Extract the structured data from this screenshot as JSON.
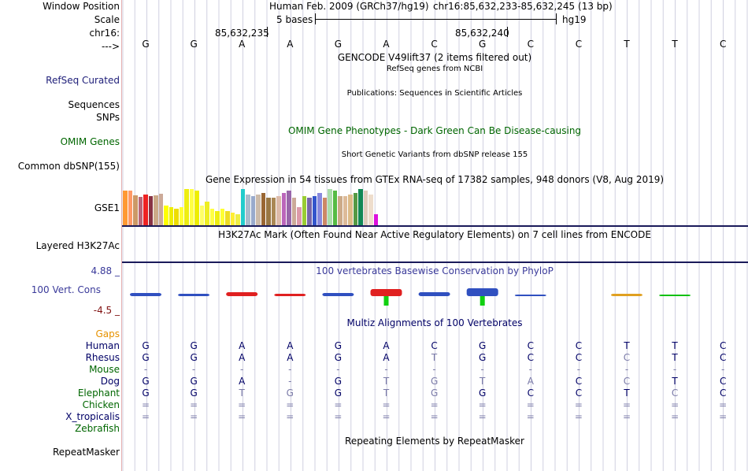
{
  "header": {
    "window_position_label": "Window Position",
    "scale_label": "Scale",
    "chrom_label": "chr16:",
    "strand_label": "--->",
    "assembly": "Human Feb. 2009 (GRCh37/hg19)",
    "position": "chr16:85,632,233-85,632,245 (13 bp)",
    "scale_text": "5 bases",
    "scale_db": "hg19",
    "ruler_tick_1": "85,632,235",
    "ruler_tick_2": "85,632,240"
  },
  "bases": [
    "G",
    "G",
    "A",
    "A",
    "G",
    "A",
    "C",
    "G",
    "C",
    "C",
    "T",
    "T",
    "C"
  ],
  "tracks": {
    "gencode_title": "GENCODE V49lift37 (2 items filtered out)",
    "refseq_title": "RefSeq genes from NCBI",
    "refseq_label": "RefSeq Curated",
    "pubs_title": "Publications: Sequences in Scientific Articles",
    "sequences_label": "Sequences",
    "snps_label": "SNPs",
    "omim_title": "OMIM Gene Phenotypes - Dark Green Can Be Disease-causing",
    "omim_label": "OMIM Genes",
    "dbsnp_title": "Short Genetic Variants from dbSNP release 155",
    "dbsnp_label": "Common dbSNP(155)",
    "gtex_title": "Gene Expression in 54 tissues from GTEx RNA-seq of 17382 samples, 948 donors (V8, Aug 2019)",
    "gtex_label": "GSE1",
    "h3k27ac_title": "H3K27Ac Mark (Often Found Near Active Regulatory Elements) on 7 cell lines from ENCODE",
    "h3k27ac_label": "Layered H3K27Ac",
    "cons_title": "100 vertebrates Basewise Conservation by PhyloP",
    "cons_label": "100 Vert. Cons",
    "cons_max": "4.88 _",
    "cons_min": "-4.5 _",
    "multiz_title": "Multiz Alignments of 100 Vertebrates",
    "gaps_label": "Gaps",
    "repeat_title": "Repeating Elements by RepeatMasker",
    "repeat_label": "RepeatMasker"
  },
  "gtex_values": [
    0.95,
    0.95,
    0.82,
    0.78,
    0.85,
    0.8,
    0.82,
    0.88,
    0.55,
    0.5,
    0.45,
    0.5,
    1.0,
    1.0,
    0.95,
    0.55,
    0.65,
    0.45,
    0.4,
    0.45,
    0.4,
    0.35,
    0.3,
    1.0,
    0.85,
    0.8,
    0.85,
    0.9,
    0.75,
    0.75,
    0.8,
    0.9,
    0.95,
    0.75,
    0.5,
    0.8,
    0.75,
    0.8,
    0.9,
    0.75,
    1.0,
    0.95,
    0.8,
    0.8,
    0.85,
    0.9,
    1.0,
    0.95,
    0.85,
    0.3
  ],
  "gtex_colors": [
    "#ff9933",
    "#ff9966",
    "#cc9966",
    "#bb6677",
    "#ee2222",
    "#883344",
    "#ccaa88",
    "#ccaa99",
    "#ffff00",
    "#eeee00",
    "#eedd00",
    "#ffff33",
    "#eeee11",
    "#ffff44",
    "#eeee00",
    "#ffff66",
    "#eeee22",
    "#ffff44",
    "#eeee11",
    "#ffff33",
    "#eedd22",
    "#ffee33",
    "#eeee44",
    "#22cccc",
    "#aabbcc",
    "#99aacc",
    "#ccbbaa",
    "#996633",
    "#997744",
    "#aa8855",
    "#ddbbaa",
    "#bb66bb",
    "#9966aa",
    "#ccaa99",
    "#dd99aa",
    "#99cc33",
    "#7766aa",
    "#3355cc",
    "#8888dd",
    "#cc8866",
    "#aaddaa",
    "#55bb44",
    "#ccaa88",
    "#ddbb99",
    "#ddbb88",
    "#559944",
    "#118855",
    "#ddccbb",
    "#eeddcc",
    "#dd11dd"
  ],
  "multiz": {
    "species": [
      "Human",
      "Rhesus",
      "Mouse",
      "Dog",
      "Elephant",
      "Chicken",
      "X_tropicalis",
      "Zebrafish"
    ],
    "species_colors": [
      "#000066",
      "#000066",
      "#006600",
      "#000066",
      "#006600",
      "#006600",
      "#000066",
      "#006600"
    ],
    "rows": [
      [
        "G",
        "G",
        "A",
        "A",
        "G",
        "A",
        "C",
        "G",
        "C",
        "C",
        "T",
        "T",
        "C"
      ],
      [
        "G",
        "G",
        "A",
        "A",
        "G",
        "A",
        "T",
        "G",
        "C",
        "C",
        "C",
        "T",
        "C"
      ],
      [
        "-",
        "-",
        "-",
        "-",
        "-",
        "-",
        "-",
        "-",
        "-",
        "-",
        "-",
        "-",
        "-"
      ],
      [
        "G",
        "G",
        "A",
        "-",
        "G",
        "T",
        "G",
        "T",
        "A",
        "C",
        "C",
        "T",
        "C"
      ],
      [
        "G",
        "G",
        "T",
        "G",
        "G",
        "T",
        "G",
        "G",
        "C",
        "C",
        "T",
        "C",
        "C"
      ],
      [
        "=",
        "=",
        "=",
        "=",
        "=",
        "=",
        "=",
        "=",
        "=",
        "=",
        "=",
        "=",
        "="
      ],
      [
        "=",
        "=",
        "=",
        "=",
        "=",
        "=",
        "=",
        "=",
        "=",
        "=",
        "=",
        "=",
        "="
      ],
      [
        "",
        "",
        "",
        "",
        "",
        "",
        "",
        "",
        "",
        "",
        "",
        "",
        ""
      ]
    ],
    "mismatch": [
      [
        0,
        0,
        0,
        0,
        0,
        0,
        0,
        0,
        0,
        0,
        0,
        0,
        0
      ],
      [
        0,
        0,
        0,
        0,
        0,
        0,
        1,
        0,
        0,
        0,
        1,
        0,
        0
      ],
      [
        1,
        1,
        1,
        1,
        1,
        1,
        1,
        1,
        1,
        1,
        1,
        1,
        1
      ],
      [
        0,
        0,
        0,
        1,
        0,
        1,
        1,
        1,
        1,
        0,
        1,
        0,
        0
      ],
      [
        0,
        0,
        1,
        1,
        0,
        1,
        1,
        0,
        0,
        0,
        0,
        1,
        0
      ],
      [
        1,
        1,
        1,
        1,
        1,
        1,
        1,
        1,
        1,
        1,
        1,
        1,
        1
      ],
      [
        1,
        1,
        1,
        1,
        1,
        1,
        1,
        1,
        1,
        1,
        1,
        1,
        1
      ],
      [
        0,
        0,
        0,
        0,
        0,
        0,
        0,
        0,
        0,
        0,
        0,
        0,
        0
      ]
    ]
  },
  "colors": {
    "navy": "#000066",
    "green": "#006600",
    "refseq": "#20207a",
    "cons": "#3a3a9a",
    "cons_min": "#801010",
    "gaps": "#e69200",
    "grid": "#d0d0e0",
    "mismatch": "#7a7aa8"
  }
}
